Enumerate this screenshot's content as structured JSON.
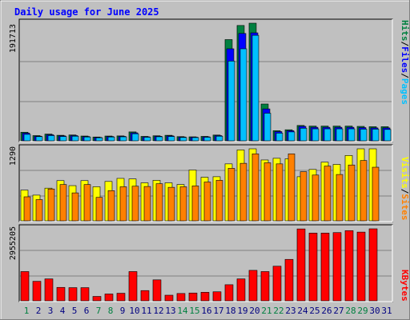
{
  "title": "Daily usage for June 2025",
  "colors": {
    "title": "#0000ff",
    "pages": "#00c0ff",
    "files": "#0000ff",
    "hits": "#008040",
    "visits": "#ffff00",
    "sites": "#ff8000",
    "kbytes": "#ff0000",
    "weekday": "#008040",
    "day": "#000080",
    "panel_bg": "#c0c0c0",
    "grid": "#808080"
  },
  "labels": {
    "hits_max": "191713",
    "visits_max": "1290",
    "kbytes_max": "2955205",
    "series_top": [
      "Pages",
      "/",
      "Files",
      "/",
      "Hits"
    ],
    "series_mid": [
      "Sites",
      "/",
      "Visits"
    ],
    "series_bot": [
      "KBytes"
    ]
  },
  "chart_data": [
    {
      "type": "bar",
      "title": "Daily usage for June 2025",
      "categories": [
        "1",
        "2",
        "3",
        "4",
        "5",
        "6",
        "7",
        "8",
        "9",
        "10",
        "11",
        "12",
        "13",
        "14",
        "15",
        "16",
        "17",
        "18",
        "19",
        "20",
        "21",
        "22",
        "23",
        "24",
        "25",
        "26",
        "27",
        "28",
        "29",
        "30",
        "31"
      ],
      "weekend_days": [
        "1",
        "7",
        "8",
        "14",
        "15",
        "21",
        "22",
        "28",
        "29"
      ],
      "ylim": [
        0,
        191713
      ],
      "series": [
        {
          "name": "Hits",
          "values": [
            14000,
            8500,
            11000,
            9000,
            9500,
            7800,
            6200,
            7800,
            8000,
            14500,
            7200,
            8200,
            9000,
            6800,
            6500,
            7200,
            9400,
            165000,
            188000,
            191713,
            60000,
            16500,
            18000,
            25000,
            24000,
            24000,
            24000,
            24000,
            23500,
            23000,
            23000
          ]
        },
        {
          "name": "Files",
          "values": [
            12500,
            7600,
            9800,
            8000,
            8500,
            7000,
            5600,
            7000,
            7200,
            13000,
            6500,
            7400,
            8000,
            6200,
            5900,
            6500,
            8500,
            150000,
            175000,
            176000,
            52000,
            15000,
            16500,
            23500,
            22000,
            22000,
            22000,
            22000,
            21500,
            21000,
            21000
          ]
        },
        {
          "name": "Pages",
          "values": [
            10500,
            6800,
            8500,
            7000,
            7500,
            6200,
            5000,
            6200,
            6500,
            11500,
            5800,
            6600,
            7000,
            5500,
            5300,
            5800,
            7500,
            130000,
            150000,
            172000,
            45000,
            12500,
            14500,
            20500,
            19500,
            19500,
            19500,
            19500,
            19000,
            19000,
            18500
          ]
        }
      ]
    },
    {
      "type": "bar",
      "categories": [
        "1",
        "2",
        "3",
        "4",
        "5",
        "6",
        "7",
        "8",
        "9",
        "10",
        "11",
        "12",
        "13",
        "14",
        "15",
        "16",
        "17",
        "18",
        "19",
        "20",
        "21",
        "22",
        "23",
        "24",
        "25",
        "26",
        "27",
        "28",
        "29",
        "30",
        "31"
      ],
      "ylim": [
        0,
        1290
      ],
      "series": [
        {
          "name": "Visits",
          "values": [
            550,
            460,
            585,
            720,
            630,
            720,
            610,
            705,
            760,
            750,
            680,
            725,
            680,
            650,
            910,
            780,
            790,
            1020,
            1270,
            1290,
            1090,
            1120,
            1110,
            790,
            920,
            1050,
            1010,
            1170,
            1290,
            1290,
            0
          ]
        },
        {
          "name": "Sites",
          "values": [
            430,
            380,
            570,
            650,
            500,
            650,
            420,
            540,
            610,
            620,
            615,
            665,
            600,
            610,
            625,
            695,
            725,
            940,
            1030,
            1200,
            1040,
            1020,
            1200,
            880,
            820,
            980,
            830,
            1000,
            1080,
            960,
            0
          ]
        }
      ]
    },
    {
      "type": "bar",
      "categories": [
        "1",
        "2",
        "3",
        "4",
        "5",
        "6",
        "7",
        "8",
        "9",
        "10",
        "11",
        "12",
        "13",
        "14",
        "15",
        "16",
        "17",
        "18",
        "19",
        "20",
        "21",
        "22",
        "23",
        "24",
        "25",
        "26",
        "27",
        "28",
        "29",
        "30",
        "31"
      ],
      "ylim": [
        0,
        2955205
      ],
      "series": [
        {
          "name": "KBytes",
          "values": [
            1200000,
            800000,
            900000,
            550000,
            540000,
            540000,
            180000,
            280000,
            310000,
            1200000,
            420000,
            860000,
            230000,
            300000,
            320000,
            350000,
            370000,
            660000,
            900000,
            1250000,
            1200000,
            1420000,
            1700000,
            2950000,
            2780000,
            2780000,
            2800000,
            2880000,
            2820000,
            2955205,
            0
          ]
        }
      ]
    }
  ]
}
